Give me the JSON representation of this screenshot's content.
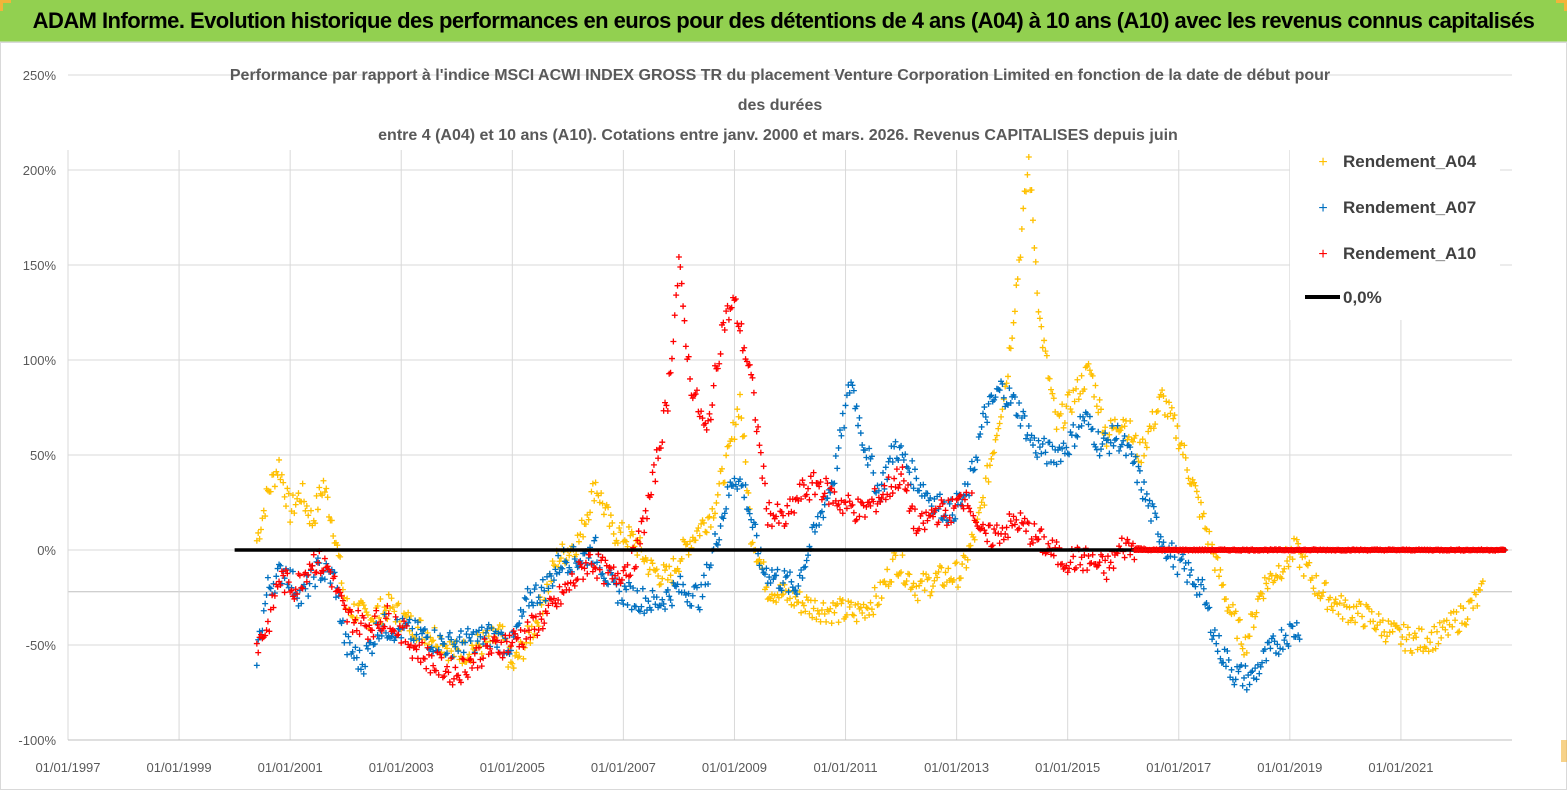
{
  "banner": {
    "title": "ADAM Informe. Evolution historique des performances en euros pour des détentions de 4 ans (A04) à 10 ans (A10) avec les revenus connus capitalisés"
  },
  "colors": {
    "banner_bg": "#92d050",
    "a04": "#ffc000",
    "a07": "#0070c0",
    "a10": "#ff0000",
    "zero_line": "#000000",
    "grid": "#d9d9d9"
  },
  "chart_data": {
    "type": "scatter",
    "title_lines": [
      "Performance par rapport à l'indice MSCI ACWI INDEX GROSS TR  du placement Venture Corporation Limited en fonction de la date de début pour",
      "des durées",
      "entre 4 (A04) et 10 ans (A10). Cotations entre janv. 2000 et mars. 2026. Revenus CAPITALISES depuis juin"
    ],
    "x_ticks": [
      "01/01/1997",
      "01/01/1999",
      "01/01/2001",
      "01/01/2003",
      "01/01/2005",
      "01/01/2007",
      "01/01/2009",
      "01/01/2011",
      "01/01/2013",
      "01/01/2015",
      "01/01/2017",
      "01/01/2019",
      "01/01/2021"
    ],
    "y_ticks": [
      "250%",
      "200%",
      "150%",
      "100%",
      "50%",
      "0%",
      "-50%",
      "-100%"
    ],
    "y_range": [
      -1.0,
      2.5
    ],
    "x_range_years": [
      1997.0,
      2023.0
    ],
    "grid": true,
    "legend_position": "top-right",
    "series": [
      {
        "name": "Rendement_A04",
        "marker": "+",
        "color": "#ffc000",
        "points": [
          [
            2000.4,
            0.05
          ],
          [
            2000.6,
            0.3
          ],
          [
            2000.8,
            0.45
          ],
          [
            2001.0,
            0.2
          ],
          [
            2001.2,
            0.3
          ],
          [
            2001.4,
            0.15
          ],
          [
            2001.6,
            0.35
          ],
          [
            2001.8,
            0.1
          ],
          [
            2002.0,
            -0.3
          ],
          [
            2002.4,
            -0.35
          ],
          [
            2002.8,
            -0.3
          ],
          [
            2003.2,
            -0.4
          ],
          [
            2003.6,
            -0.45
          ],
          [
            2004.0,
            -0.55
          ],
          [
            2004.4,
            -0.5
          ],
          [
            2004.8,
            -0.45
          ],
          [
            2005.0,
            -0.62
          ],
          [
            2005.4,
            -0.4
          ],
          [
            2005.8,
            -0.05
          ],
          [
            2006.2,
            0.05
          ],
          [
            2006.5,
            0.35
          ],
          [
            2006.8,
            0.1
          ],
          [
            2007.2,
            0.05
          ],
          [
            2007.5,
            -0.1
          ],
          [
            2007.8,
            -0.15
          ],
          [
            2008.2,
            0.05
          ],
          [
            2008.6,
            0.2
          ],
          [
            2008.9,
            0.5
          ],
          [
            2009.1,
            0.8
          ],
          [
            2009.3,
            0.1
          ],
          [
            2009.6,
            -0.2
          ],
          [
            2010.0,
            -0.25
          ],
          [
            2010.4,
            -0.3
          ],
          [
            2010.8,
            -0.32
          ],
          [
            2011.2,
            -0.33
          ],
          [
            2011.6,
            -0.25
          ],
          [
            2011.9,
            -0.05
          ],
          [
            2012.3,
            -0.2
          ],
          [
            2012.7,
            -0.15
          ],
          [
            2013.1,
            -0.12
          ],
          [
            2013.4,
            0.15
          ],
          [
            2013.7,
            0.6
          ],
          [
            2013.9,
            0.9
          ],
          [
            2014.1,
            1.45
          ],
          [
            2014.3,
            2.05
          ],
          [
            2014.5,
            1.2
          ],
          [
            2014.8,
            0.65
          ],
          [
            2015.1,
            0.8
          ],
          [
            2015.4,
            0.95
          ],
          [
            2015.7,
            0.6
          ],
          [
            2016.0,
            0.7
          ],
          [
            2016.3,
            0.5
          ],
          [
            2016.7,
            0.8
          ],
          [
            2017.0,
            0.6
          ],
          [
            2017.3,
            0.3
          ],
          [
            2017.6,
            0.0
          ],
          [
            2017.9,
            -0.3
          ],
          [
            2018.2,
            -0.5
          ],
          [
            2018.5,
            -0.2
          ],
          [
            2018.8,
            -0.1
          ],
          [
            2019.1,
            0.0
          ],
          [
            2019.5,
            -0.2
          ],
          [
            2019.9,
            -0.3
          ],
          [
            2020.4,
            -0.35
          ],
          [
            2020.9,
            -0.45
          ],
          [
            2021.3,
            -0.48
          ],
          [
            2021.7,
            -0.45
          ],
          [
            2022.1,
            -0.35
          ],
          [
            2022.5,
            -0.22
          ]
        ]
      },
      {
        "name": "Rendement_A07",
        "marker": "+",
        "color": "#0070c0",
        "points": [
          [
            2000.4,
            -0.55
          ],
          [
            2000.6,
            -0.2
          ],
          [
            2000.9,
            -0.1
          ],
          [
            2001.2,
            -0.25
          ],
          [
            2001.5,
            -0.1
          ],
          [
            2001.8,
            -0.15
          ],
          [
            2002.0,
            -0.5
          ],
          [
            2002.3,
            -0.6
          ],
          [
            2002.6,
            -0.4
          ],
          [
            2003.0,
            -0.42
          ],
          [
            2003.4,
            -0.45
          ],
          [
            2003.8,
            -0.5
          ],
          [
            2004.2,
            -0.48
          ],
          [
            2004.6,
            -0.45
          ],
          [
            2005.0,
            -0.5
          ],
          [
            2005.3,
            -0.25
          ],
          [
            2005.6,
            -0.2
          ],
          [
            2005.9,
            -0.05
          ],
          [
            2006.2,
            -0.05
          ],
          [
            2006.5,
            0.0
          ],
          [
            2006.8,
            -0.2
          ],
          [
            2007.2,
            -0.25
          ],
          [
            2007.6,
            -0.28
          ],
          [
            2008.0,
            -0.2
          ],
          [
            2008.4,
            -0.25
          ],
          [
            2008.8,
            0.2
          ],
          [
            2009.0,
            0.4
          ],
          [
            2009.2,
            0.3
          ],
          [
            2009.5,
            -0.1
          ],
          [
            2009.8,
            -0.15
          ],
          [
            2010.1,
            -0.2
          ],
          [
            2010.4,
            0.05
          ],
          [
            2010.8,
            0.4
          ],
          [
            2011.1,
            0.9
          ],
          [
            2011.3,
            0.6
          ],
          [
            2011.6,
            0.3
          ],
          [
            2011.9,
            0.55
          ],
          [
            2012.2,
            0.4
          ],
          [
            2012.6,
            0.25
          ],
          [
            2012.9,
            0.2
          ],
          [
            2013.2,
            0.3
          ],
          [
            2013.5,
            0.7
          ],
          [
            2013.8,
            0.85
          ],
          [
            2014.1,
            0.75
          ],
          [
            2014.4,
            0.55
          ],
          [
            2014.7,
            0.5
          ],
          [
            2015.0,
            0.55
          ],
          [
            2015.3,
            0.7
          ],
          [
            2015.6,
            0.55
          ],
          [
            2015.9,
            0.6
          ],
          [
            2016.2,
            0.45
          ],
          [
            2016.5,
            0.2
          ],
          [
            2016.8,
            0.0
          ],
          [
            2017.1,
            -0.1
          ],
          [
            2017.4,
            -0.2
          ],
          [
            2017.7,
            -0.5
          ],
          [
            2018.0,
            -0.65
          ],
          [
            2018.3,
            -0.68
          ],
          [
            2018.6,
            -0.55
          ],
          [
            2018.9,
            -0.45
          ],
          [
            2019.2,
            -0.4
          ]
        ]
      },
      {
        "name": "Rendement_A10",
        "marker": "+",
        "color": "#ff0000",
        "points": [
          [
            2000.4,
            -0.5
          ],
          [
            2000.6,
            -0.4
          ],
          [
            2000.8,
            -0.15
          ],
          [
            2001.1,
            -0.2
          ],
          [
            2001.4,
            -0.05
          ],
          [
            2001.7,
            -0.1
          ],
          [
            2002.0,
            -0.35
          ],
          [
            2002.4,
            -0.4
          ],
          [
            2002.8,
            -0.35
          ],
          [
            2003.2,
            -0.5
          ],
          [
            2003.6,
            -0.6
          ],
          [
            2004.0,
            -0.65
          ],
          [
            2004.4,
            -0.55
          ],
          [
            2004.8,
            -0.5
          ],
          [
            2005.2,
            -0.45
          ],
          [
            2005.6,
            -0.35
          ],
          [
            2006.0,
            -0.2
          ],
          [
            2006.4,
            -0.05
          ],
          [
            2006.8,
            -0.15
          ],
          [
            2007.2,
            -0.05
          ],
          [
            2007.5,
            0.3
          ],
          [
            2007.8,
            0.8
          ],
          [
            2008.0,
            1.5
          ],
          [
            2008.2,
            0.9
          ],
          [
            2008.5,
            0.6
          ],
          [
            2008.8,
            1.2
          ],
          [
            2009.0,
            1.3
          ],
          [
            2009.3,
            0.9
          ],
          [
            2009.6,
            0.2
          ],
          [
            2009.9,
            0.15
          ],
          [
            2010.2,
            0.3
          ],
          [
            2010.5,
            0.35
          ],
          [
            2010.9,
            0.25
          ],
          [
            2011.3,
            0.2
          ],
          [
            2011.7,
            0.3
          ],
          [
            2012.0,
            0.4
          ],
          [
            2012.3,
            0.1
          ],
          [
            2012.6,
            0.2
          ],
          [
            2012.9,
            0.2
          ],
          [
            2013.2,
            0.3
          ],
          [
            2013.5,
            0.05
          ],
          [
            2013.8,
            0.1
          ],
          [
            2014.1,
            0.15
          ],
          [
            2014.5,
            0.05
          ],
          [
            2014.9,
            -0.05
          ],
          [
            2015.3,
            -0.05
          ],
          [
            2015.7,
            -0.1
          ],
          [
            2016.0,
            0.02
          ],
          [
            2016.5,
            0.0
          ],
          [
            2017.0,
            0.0
          ],
          [
            2018.0,
            0.0
          ],
          [
            2019.0,
            0.0
          ],
          [
            2020.0,
            0.0
          ],
          [
            2021.0,
            0.0
          ],
          [
            2022.0,
            0.0
          ],
          [
            2022.9,
            0.0
          ]
        ]
      }
    ],
    "reference_line": {
      "name": "0,0%",
      "y": 0,
      "x_from": 2000.0,
      "x_to": 2022.9
    }
  }
}
